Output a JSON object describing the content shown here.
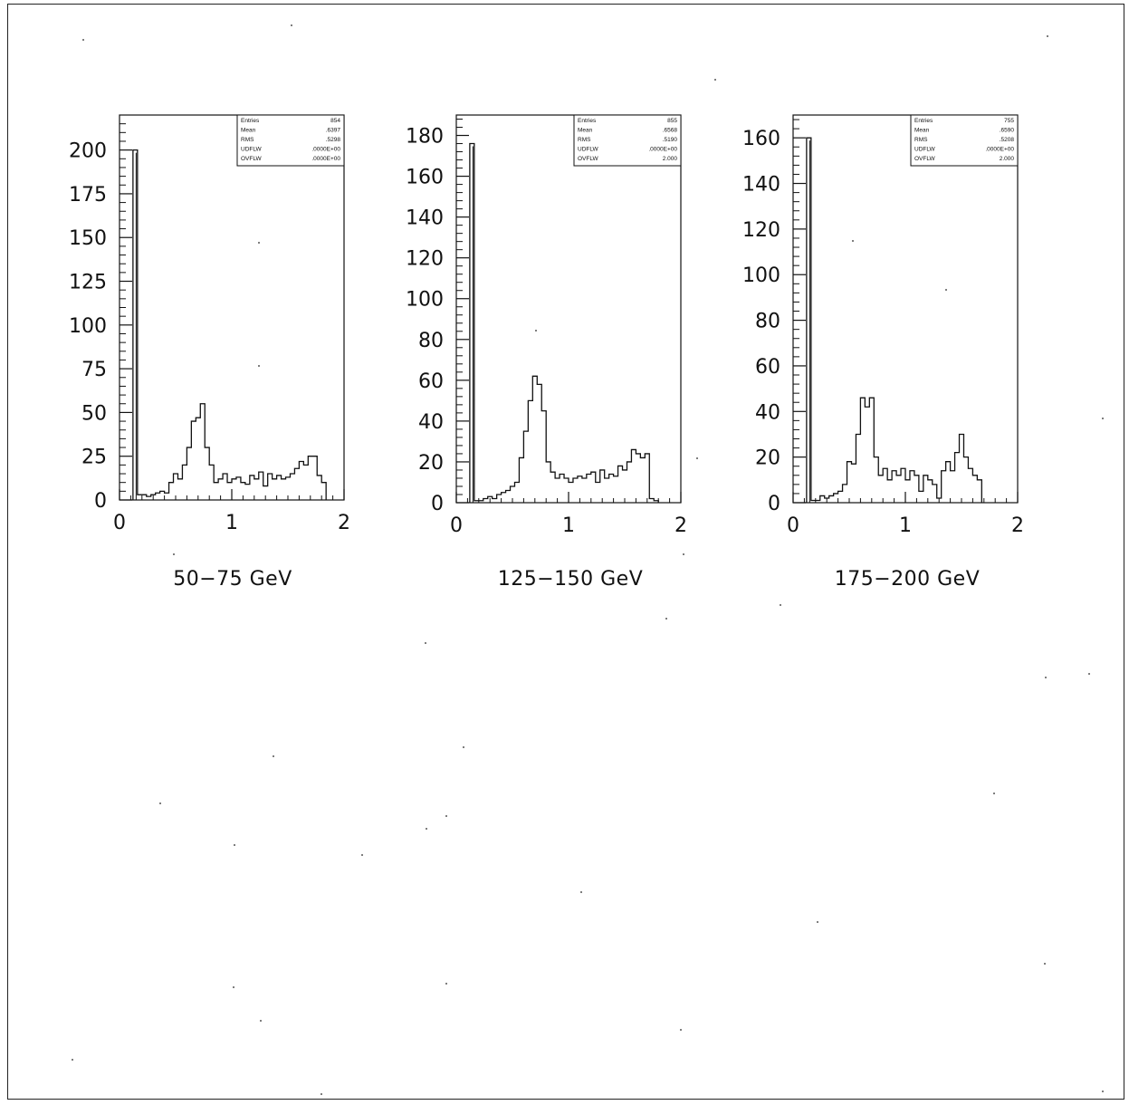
{
  "chart_data": [
    {
      "type": "histogram",
      "caption": "50−75 GeV",
      "xlim": [
        0,
        2
      ],
      "ylim": [
        0,
        220
      ],
      "xticks": [
        "0",
        "1",
        "2"
      ],
      "yticks": [
        "0",
        "25",
        "50",
        "75",
        "100",
        "125",
        "150",
        "175",
        "200"
      ],
      "bin_width": 0.04,
      "x_start": 0.12,
      "values": [
        200,
        3,
        3,
        2,
        3,
        4,
        5,
        4,
        10,
        15,
        12,
        20,
        30,
        45,
        47,
        55,
        30,
        20,
        10,
        12,
        15,
        10,
        12,
        13,
        10,
        9,
        14,
        12,
        16,
        8,
        15,
        12,
        14,
        12,
        13,
        15,
        18,
        22,
        20,
        25,
        25,
        14,
        10
      ],
      "stats": [
        {
          "label": "Entries",
          "value": "854"
        },
        {
          "label": "Mean",
          "value": ".6397"
        },
        {
          "label": "RMS",
          "value": ".5298"
        },
        {
          "label": "UDFLW",
          "value": ".0000E+00"
        },
        {
          "label": "OVFLW",
          "value": ".0000E+00"
        }
      ]
    },
    {
      "type": "histogram",
      "caption": "125−150 GeV",
      "xlim": [
        0,
        2
      ],
      "ylim": [
        0,
        190
      ],
      "xticks": [
        "0",
        "1",
        "2"
      ],
      "yticks": [
        "0",
        "20",
        "40",
        "60",
        "80",
        "100",
        "120",
        "140",
        "160",
        "180"
      ],
      "bin_width": 0.04,
      "x_start": 0.12,
      "values": [
        176,
        1,
        1,
        2,
        3,
        2,
        4,
        5,
        6,
        8,
        10,
        22,
        35,
        50,
        62,
        58,
        45,
        20,
        15,
        12,
        14,
        12,
        10,
        12,
        13,
        12,
        14,
        15,
        10,
        16,
        12,
        14,
        13,
        18,
        16,
        20,
        26,
        24,
        22,
        24,
        2,
        1
      ],
      "stats": [
        {
          "label": "Entries",
          "value": "855"
        },
        {
          "label": "Mean",
          "value": ".6568"
        },
        {
          "label": "RMS",
          "value": ".5190"
        },
        {
          "label": "UDFLW",
          "value": ".0000E+00"
        },
        {
          "label": "OVFLW",
          "value": "2.000"
        }
      ]
    },
    {
      "type": "histogram",
      "caption": "175−200 GeV",
      "xlim": [
        0,
        2
      ],
      "ylim": [
        0,
        170
      ],
      "xticks": [
        "0",
        "1",
        "2"
      ],
      "yticks": [
        "0",
        "20",
        "40",
        "60",
        "80",
        "100",
        "120",
        "140",
        "160"
      ],
      "bin_width": 0.04,
      "x_start": 0.12,
      "values": [
        160,
        1,
        1,
        3,
        2,
        3,
        4,
        5,
        8,
        18,
        17,
        30,
        46,
        42,
        46,
        20,
        12,
        15,
        10,
        14,
        12,
        15,
        10,
        14,
        12,
        5,
        12,
        10,
        8,
        2,
        14,
        18,
        14,
        22,
        30,
        20,
        15,
        12,
        10
      ],
      "stats": [
        {
          "label": "Entries",
          "value": "755"
        },
        {
          "label": "Mean",
          "value": ".6590"
        },
        {
          "label": "RMS",
          "value": ".5208"
        },
        {
          "label": "UDFLW",
          "value": ".0000E+00"
        },
        {
          "label": "OVFLW",
          "value": "2.000"
        }
      ]
    }
  ]
}
